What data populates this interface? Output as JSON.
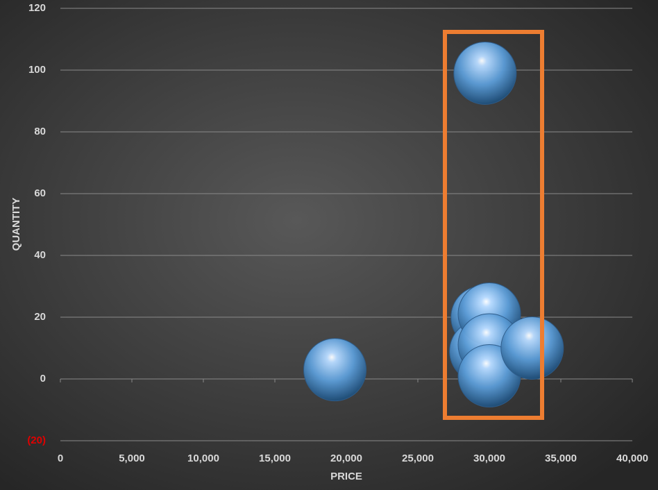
{
  "chart_data": {
    "type": "scatter",
    "x_label": "PRICE",
    "y_label": "QUANTITY",
    "x": [
      19200,
      29700,
      29500,
      29400,
      30000,
      30000,
      30000,
      33000
    ],
    "values": [
      3,
      99,
      20,
      9,
      21,
      11,
      1,
      10
    ],
    "color": "#5b9bd5",
    "xlim": [
      0,
      40000
    ],
    "xticks": [
      0,
      {
        "value": 5000,
        "label": "5,000"
      },
      {
        "value": 10000,
        "label": "10,000"
      },
      {
        "value": 15000,
        "label": "15,000"
      },
      {
        "value": 20000,
        "label": "20,000"
      },
      {
        "value": 25000,
        "label": "25,000"
      },
      {
        "value": 30000,
        "label": "30,000"
      },
      {
        "value": 35000,
        "label": "35,000"
      },
      {
        "value": 40000,
        "label": "40,000"
      }
    ],
    "ylim": [
      -20,
      120
    ],
    "yticks": [
      {
        "value": -20,
        "label": "(20)"
      },
      0,
      20,
      40,
      60,
      80,
      100,
      120
    ],
    "negative_tick_color": "#e00000",
    "grid": true
  }
}
